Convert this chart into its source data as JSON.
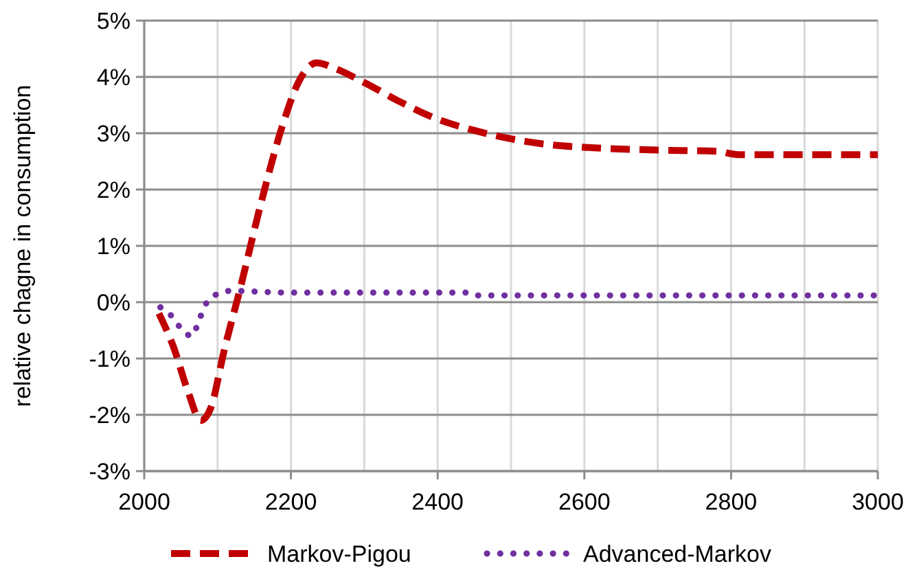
{
  "chart_data": {
    "type": "line",
    "ylabel": "relative chagne in consumption",
    "xlim": [
      2000,
      3000
    ],
    "xticks": [
      2000,
      2200,
      2400,
      2600,
      2800,
      3000
    ],
    "ylim": [
      -3,
      5
    ],
    "yticks": [
      {
        "value": -3,
        "label": "-3%"
      },
      {
        "value": -2,
        "label": "-2%"
      },
      {
        "value": -1,
        "label": "-1%"
      },
      {
        "value": 0,
        "label": "0%"
      },
      {
        "value": 1,
        "label": "1%"
      },
      {
        "value": 2,
        "label": "2%"
      },
      {
        "value": 3,
        "label": "3%"
      },
      {
        "value": 4,
        "label": "4%"
      },
      {
        "value": 5,
        "label": "5%"
      }
    ],
    "grid": true,
    "legend": "bottom",
    "series": [
      {
        "name": "Markov-Pigou",
        "color": "#c00000",
        "line_style": "dashed",
        "x": [
          2020,
          2040,
          2060,
          2077,
          2090,
          2110,
          2130,
          2160,
          2190,
          2210,
          2235,
          2260,
          2300,
          2350,
          2400,
          2450,
          2500,
          2550,
          2600,
          2700,
          2780,
          2810,
          2900,
          3000
        ],
        "values": [
          -0.2,
          -0.8,
          -1.6,
          -2.1,
          -1.9,
          -0.8,
          0.2,
          1.8,
          3.2,
          3.9,
          4.25,
          4.15,
          3.9,
          3.55,
          3.25,
          3.05,
          2.9,
          2.8,
          2.75,
          2.7,
          2.68,
          2.62,
          2.62,
          2.62
        ]
      },
      {
        "name": "Advanced-Markov",
        "color": "#7030a0",
        "line_style": "dotted",
        "x": [
          2022,
          2039,
          2052,
          2065,
          2074,
          2082,
          2096,
          2116,
          2200,
          2300,
          2440,
          2450,
          2600,
          2800,
          3000
        ],
        "values": [
          -0.09,
          -0.27,
          -0.5,
          -0.6,
          -0.35,
          -0.08,
          0.12,
          0.2,
          0.17,
          0.17,
          0.17,
          0.12,
          0.12,
          0.12,
          0.12
        ]
      }
    ]
  }
}
